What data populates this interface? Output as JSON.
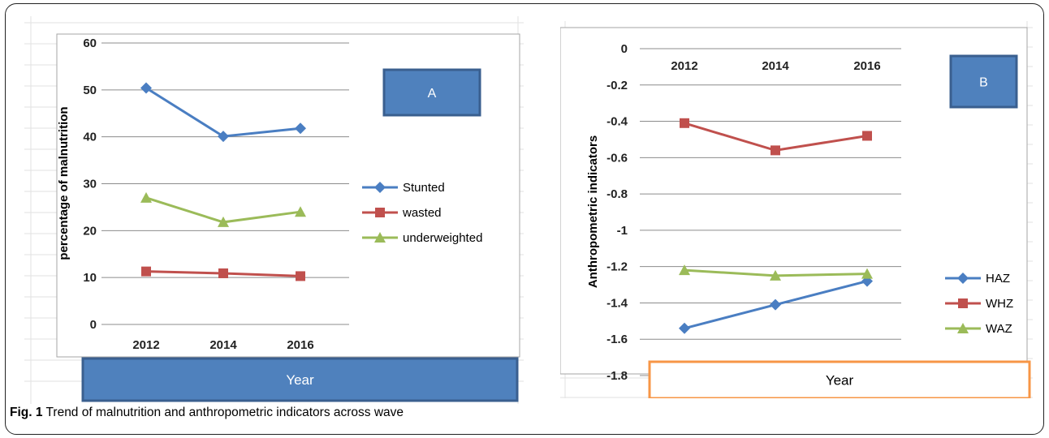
{
  "caption": {
    "label": "Fig. 1",
    "text": "Trend of malnutrition and anthropometric indicators across wave"
  },
  "colors": {
    "blue": "#4a7ec2",
    "red": "#c0504d",
    "green": "#9bbb59",
    "box_blue": "#4f81bd",
    "box_border": "#3a5f8f",
    "orange": "#f79646",
    "grid": "#8c8c8c"
  },
  "chart_data": [
    {
      "type": "line",
      "panel_label": "A",
      "ylabel": "percentage of malnutrition",
      "xlabel": "Year",
      "categories": [
        "2012",
        "2014",
        "2016"
      ],
      "ylim": [
        0,
        60
      ],
      "yticks": [
        0,
        10,
        20,
        30,
        40,
        50,
        60
      ],
      "grid": true,
      "legend_position": "right",
      "series": [
        {
          "name": "Stunted",
          "values": [
            50.4,
            40.1,
            41.8
          ],
          "color": "#4a7ec2",
          "marker": "diamond-icon"
        },
        {
          "name": "wasted",
          "values": [
            11.3,
            10.9,
            10.3
          ],
          "color": "#c0504d",
          "marker": "square-icon"
        },
        {
          "name": "underweighted",
          "values": [
            27.0,
            21.8,
            24.0
          ],
          "color": "#9bbb59",
          "marker": "triangle-icon"
        }
      ]
    },
    {
      "type": "line",
      "panel_label": "B",
      "ylabel": "Anthropometric indicators",
      "xlabel": "Year",
      "categories": [
        "2012",
        "2014",
        "2016"
      ],
      "ylim": [
        -1.8,
        0
      ],
      "yticks": [
        "0",
        "-0.2",
        "-0.4",
        "-0.6",
        "-0.8",
        "-1",
        "-1.2",
        "-1.4",
        "-1.6",
        "-1.8"
      ],
      "grid": true,
      "legend_position": "right",
      "series": [
        {
          "name": "HAZ",
          "values": [
            -1.54,
            -1.41,
            -1.28
          ],
          "color": "#4a7ec2",
          "marker": "diamond-icon"
        },
        {
          "name": "WHZ",
          "values": [
            -0.41,
            -0.56,
            -0.48
          ],
          "color": "#c0504d",
          "marker": "square-icon"
        },
        {
          "name": "WAZ",
          "values": [
            -1.22,
            -1.25,
            -1.24
          ],
          "color": "#9bbb59",
          "marker": "triangle-icon"
        }
      ]
    }
  ]
}
